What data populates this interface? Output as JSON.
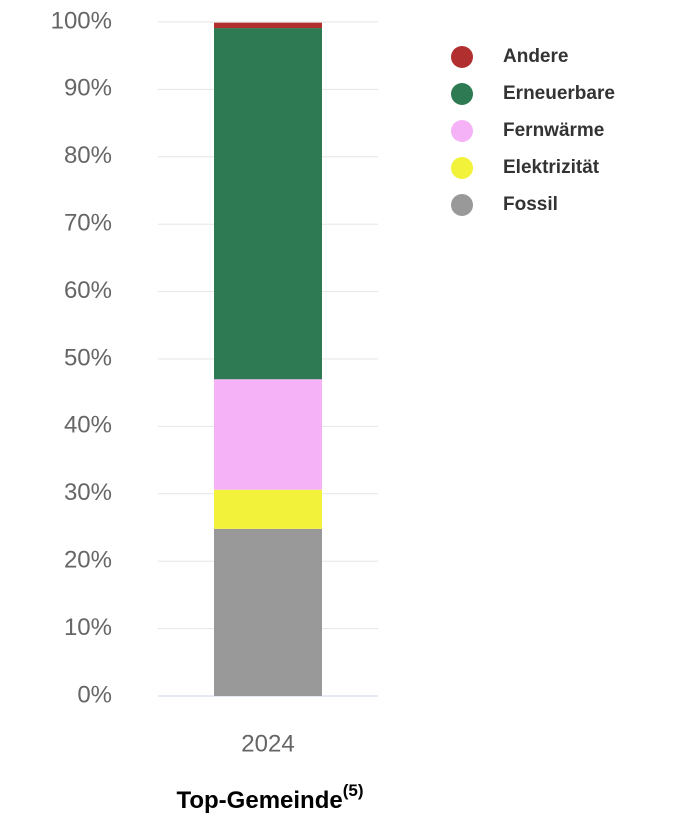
{
  "chart_data": {
    "type": "stacked_bar",
    "categories": [
      "2024"
    ],
    "series": [
      {
        "name": "Fossil",
        "color": "#999999",
        "values": [
          24.8
        ]
      },
      {
        "name": "Elektrizität",
        "color": "#f2f23a",
        "values": [
          5.8
        ]
      },
      {
        "name": "Fernwärme",
        "color": "#f5b2f7",
        "values": [
          16.4
        ]
      },
      {
        "name": "Erneuerbare",
        "color": "#2e7a52",
        "values": [
          52.1
        ]
      },
      {
        "name": "Andere",
        "color": "#b22f2f",
        "values": [
          0.8
        ]
      }
    ],
    "xlabel": "Top-Gemeinde",
    "xlabel_footnote": "(5)",
    "ylim": [
      0,
      100
    ],
    "yticks": [
      {
        "value": 0,
        "label": "0%"
      },
      {
        "value": 10,
        "label": "10%"
      },
      {
        "value": 20,
        "label": "20%"
      },
      {
        "value": 30,
        "label": "30%"
      },
      {
        "value": 40,
        "label": "40%"
      },
      {
        "value": 50,
        "label": "50%"
      },
      {
        "value": 60,
        "label": "60%"
      },
      {
        "value": 70,
        "label": "70%"
      },
      {
        "value": 80,
        "label": "80%"
      },
      {
        "value": 90,
        "label": "90%"
      },
      {
        "value": 100,
        "label": "100%"
      }
    ],
    "grid": true,
    "legend": "right"
  }
}
